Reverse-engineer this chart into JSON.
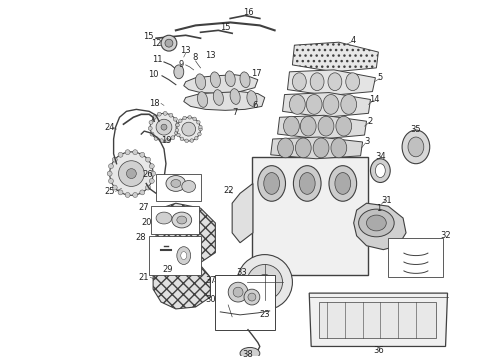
{
  "bg_color": "#ffffff",
  "line_color": "#404040",
  "label_color": "#222222",
  "fig_width": 4.9,
  "fig_height": 3.6,
  "dpi": 100
}
